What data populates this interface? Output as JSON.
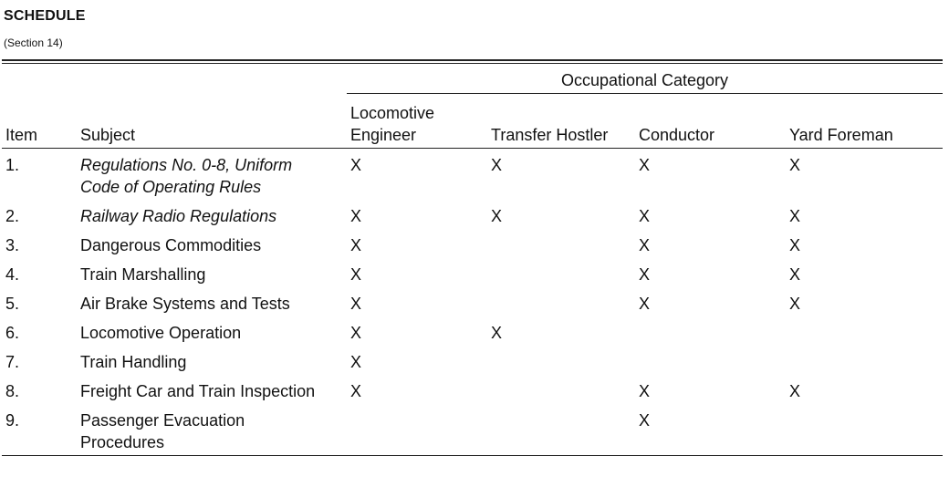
{
  "title": "SCHEDULE",
  "subtitle": "(Section 14)",
  "group_header": "Occupational Category",
  "columns": [
    "Item",
    "Subject",
    "Locomotive Engineer",
    "Transfer Hostler",
    "Conductor",
    "Yard Foreman"
  ],
  "rows": [
    {
      "item": "1.",
      "subject": "Regulations No. 0-8, Uniform Code of Operating Rules",
      "italic": true,
      "marks": [
        "X",
        "X",
        "X",
        "X"
      ]
    },
    {
      "item": "2.",
      "subject": "Railway Radio Regulations",
      "italic": true,
      "marks": [
        "X",
        "X",
        "X",
        "X"
      ]
    },
    {
      "item": "3.",
      "subject": "Dangerous Commodities",
      "italic": false,
      "marks": [
        "X",
        "",
        "X",
        "X"
      ]
    },
    {
      "item": "4.",
      "subject": "Train Marshalling",
      "italic": false,
      "marks": [
        "X",
        "",
        "X",
        "X"
      ]
    },
    {
      "item": "5.",
      "subject": "Air Brake Systems and Tests",
      "italic": false,
      "marks": [
        "X",
        "",
        "X",
        "X"
      ]
    },
    {
      "item": "6.",
      "subject": "Locomotive Operation",
      "italic": false,
      "marks": [
        "X",
        "X",
        "",
        ""
      ]
    },
    {
      "item": "7.",
      "subject": "Train Handling",
      "italic": false,
      "marks": [
        "X",
        "",
        "",
        ""
      ]
    },
    {
      "item": "8.",
      "subject": "Freight Car and Train Inspection",
      "italic": false,
      "marks": [
        "X",
        "",
        "X",
        "X"
      ]
    },
    {
      "item": "9.",
      "subject": "Passenger Evacuation Procedures",
      "italic": false,
      "marks": [
        "",
        "",
        "X",
        ""
      ]
    }
  ]
}
